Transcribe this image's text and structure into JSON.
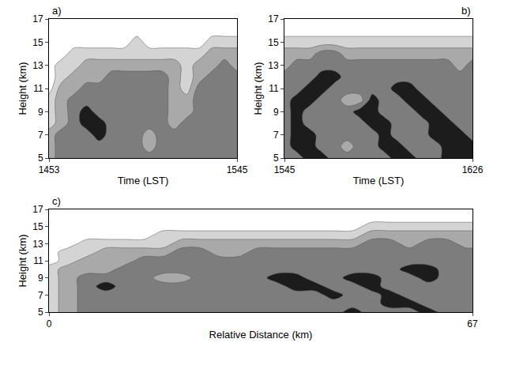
{
  "chart_data": [
    {
      "type": "contour",
      "label": "a)",
      "xlabel": "Time (LST)",
      "ylabel": "Height (km)",
      "categories": [
        "1453",
        null,
        null,
        null,
        null,
        null,
        null,
        null,
        null,
        null,
        null,
        null,
        null,
        null,
        null,
        "1545"
      ],
      "y": [
        5,
        6,
        7,
        8,
        9,
        10,
        11,
        12,
        13,
        14,
        15,
        16,
        17
      ],
      "ylim": [
        5,
        17
      ],
      "yticks": [
        5,
        7,
        9,
        11,
        13,
        15,
        17
      ],
      "colors": [
        "#ffffff",
        "#d4d4d4",
        "#a9a9a9",
        "#7d7d7d",
        "#1c1c1c"
      ],
      "z": [
        [
          2,
          3,
          3,
          3,
          3,
          3,
          3,
          3,
          3,
          3,
          3,
          3,
          3,
          3,
          3,
          3
        ],
        [
          2,
          3,
          3,
          3,
          3,
          3,
          3,
          3,
          2,
          3,
          3,
          3,
          3,
          3,
          3,
          3
        ],
        [
          2,
          3,
          3,
          3,
          4,
          3,
          3,
          3,
          2,
          3,
          3,
          3,
          3,
          3,
          3,
          3
        ],
        [
          1,
          2,
          3,
          4,
          4,
          3,
          3,
          3,
          3,
          3,
          2,
          3,
          3,
          3,
          3,
          3
        ],
        [
          1,
          2,
          3,
          4,
          3,
          3,
          3,
          3,
          3,
          3,
          2,
          2,
          3,
          3,
          3,
          3
        ],
        [
          1,
          2,
          3,
          3,
          3,
          3,
          3,
          3,
          3,
          3,
          2,
          2,
          3,
          3,
          3,
          3
        ],
        [
          0,
          2,
          2,
          3,
          3,
          3,
          3,
          3,
          3,
          3,
          2,
          1,
          3,
          3,
          3,
          3
        ],
        [
          0,
          1,
          2,
          2,
          2,
          3,
          3,
          3,
          3,
          3,
          2,
          1,
          2,
          3,
          3,
          3
        ],
        [
          0,
          1,
          1,
          2,
          2,
          2,
          2,
          2,
          2,
          2,
          2,
          1,
          2,
          2,
          3,
          2
        ],
        [
          0,
          0,
          1,
          1,
          1,
          1,
          1,
          1,
          1,
          1,
          1,
          1,
          1,
          2,
          2,
          2
        ],
        [
          0,
          0,
          0,
          0,
          0,
          0,
          0,
          1,
          0,
          0,
          0,
          0,
          0,
          1,
          1,
          1
        ],
        [
          0,
          0,
          0,
          0,
          0,
          0,
          0,
          0,
          0,
          0,
          0,
          0,
          0,
          0,
          0,
          0
        ],
        [
          0,
          0,
          0,
          0,
          0,
          0,
          0,
          0,
          0,
          0,
          0,
          0,
          0,
          0,
          0,
          0
        ]
      ]
    },
    {
      "type": "contour",
      "label": "b)",
      "xlabel": "Time (LST)",
      "ylabel": "Height (km)",
      "categories": [
        "1545",
        null,
        null,
        null,
        null,
        null,
        null,
        null,
        null,
        null,
        null,
        null,
        null,
        null,
        null,
        "1626"
      ],
      "y": [
        5,
        6,
        7,
        8,
        9,
        10,
        11,
        12,
        13,
        14,
        15,
        16,
        17
      ],
      "ylim": [
        5,
        17
      ],
      "yticks": [
        5,
        7,
        9,
        11,
        13,
        15,
        17
      ],
      "colors": [
        "#ffffff",
        "#d4d4d4",
        "#a9a9a9",
        "#7d7d7d",
        "#1c1c1c"
      ],
      "z": [
        [
          3,
          3,
          4,
          4,
          3,
          3,
          3,
          3,
          3,
          4,
          4,
          3,
          3,
          4,
          4,
          4
        ],
        [
          3,
          4,
          4,
          3,
          3,
          2,
          3,
          3,
          4,
          4,
          3,
          3,
          3,
          4,
          4,
          4
        ],
        [
          3,
          4,
          4,
          3,
          3,
          3,
          3,
          3,
          4,
          3,
          3,
          3,
          4,
          4,
          4,
          3
        ],
        [
          3,
          4,
          3,
          3,
          3,
          3,
          3,
          4,
          4,
          3,
          3,
          3,
          4,
          4,
          3,
          3
        ],
        [
          3,
          4,
          3,
          3,
          3,
          3,
          4,
          4,
          3,
          3,
          3,
          4,
          4,
          3,
          3,
          3
        ],
        [
          3,
          4,
          4,
          3,
          3,
          2,
          2,
          4,
          3,
          3,
          4,
          4,
          3,
          3,
          3,
          3
        ],
        [
          3,
          3,
          4,
          4,
          3,
          3,
          3,
          3,
          3,
          4,
          4,
          3,
          3,
          3,
          3,
          3
        ],
        [
          3,
          3,
          3,
          4,
          4,
          3,
          3,
          3,
          3,
          3,
          3,
          3,
          3,
          3,
          3,
          3
        ],
        [
          2,
          3,
          3,
          3,
          3,
          3,
          3,
          3,
          3,
          3,
          3,
          3,
          3,
          3,
          2,
          3
        ],
        [
          2,
          2,
          2,
          3,
          3,
          2,
          2,
          2,
          2,
          2,
          2,
          2,
          2,
          2,
          2,
          2
        ],
        [
          1,
          1,
          1,
          1,
          1,
          1,
          1,
          1,
          1,
          1,
          1,
          1,
          1,
          1,
          1,
          1
        ],
        [
          0,
          0,
          0,
          0,
          0,
          0,
          0,
          0,
          0,
          0,
          0,
          0,
          0,
          0,
          0,
          0
        ],
        [
          0,
          0,
          0,
          0,
          0,
          0,
          0,
          0,
          0,
          0,
          0,
          0,
          0,
          0,
          0,
          0
        ]
      ]
    },
    {
      "type": "contour",
      "label": "c)",
      "xlabel": "Relative Distance (km)",
      "ylabel": "Height (km)",
      "x": [
        0,
        3,
        6,
        9,
        12,
        15,
        18,
        21,
        24,
        27,
        30,
        33,
        36,
        39,
        42,
        45,
        48,
        51,
        54,
        57,
        60,
        63,
        66,
        67
      ],
      "xlim": [
        0,
        67
      ],
      "xticks": [
        0,
        67
      ],
      "y": [
        5,
        6,
        7,
        8,
        9,
        10,
        11,
        12,
        13,
        14,
        15,
        16,
        17
      ],
      "ylim": [
        5,
        17
      ],
      "yticks": [
        5,
        7,
        9,
        11,
        13,
        15,
        17
      ],
      "colors": [
        "#ffffff",
        "#d4d4d4",
        "#a9a9a9",
        "#7d7d7d",
        "#1c1c1c"
      ],
      "z": [
        [
          1,
          2,
          3,
          3,
          3,
          3,
          3,
          3,
          3,
          3,
          3,
          3,
          3,
          3,
          3,
          3,
          4,
          3,
          3,
          3,
          4,
          3,
          3,
          3
        ],
        [
          1,
          2,
          3,
          3,
          3,
          3,
          3,
          3,
          3,
          3,
          3,
          3,
          3,
          3,
          3,
          3,
          3,
          3,
          4,
          4,
          3,
          3,
          3,
          3
        ],
        [
          1,
          2,
          3,
          3,
          3,
          3,
          3,
          3,
          3,
          3,
          3,
          3,
          3,
          3,
          3,
          4,
          3,
          3,
          4,
          3,
          3,
          3,
          3,
          3
        ],
        [
          1,
          2,
          3,
          4,
          3,
          3,
          3,
          3,
          3,
          3,
          3,
          3,
          3,
          4,
          4,
          3,
          3,
          4,
          3,
          3,
          3,
          3,
          3,
          3
        ],
        [
          1,
          2,
          3,
          3,
          3,
          3,
          2,
          2,
          3,
          3,
          3,
          3,
          4,
          4,
          3,
          3,
          4,
          4,
          3,
          3,
          4,
          3,
          3,
          3
        ],
        [
          1,
          2,
          2,
          2,
          3,
          3,
          3,
          3,
          3,
          3,
          3,
          3,
          3,
          3,
          3,
          3,
          3,
          3,
          3,
          4,
          4,
          3,
          3,
          3
        ],
        [
          0,
          1,
          2,
          2,
          2,
          3,
          3,
          3,
          3,
          3,
          3,
          3,
          3,
          3,
          3,
          3,
          3,
          3,
          3,
          3,
          3,
          3,
          3,
          3
        ],
        [
          0,
          1,
          1,
          2,
          2,
          2,
          2,
          3,
          3,
          2,
          2,
          3,
          3,
          3,
          3,
          3,
          3,
          3,
          3,
          3,
          3,
          3,
          3,
          3
        ],
        [
          0,
          0,
          1,
          1,
          1,
          1,
          1,
          2,
          2,
          2,
          2,
          2,
          2,
          2,
          2,
          2,
          2,
          3,
          3,
          2,
          3,
          3,
          2,
          2
        ],
        [
          0,
          0,
          0,
          0,
          0,
          0,
          1,
          1,
          1,
          1,
          1,
          1,
          1,
          1,
          1,
          1,
          1,
          2,
          2,
          2,
          2,
          2,
          2,
          2
        ],
        [
          0,
          0,
          0,
          0,
          0,
          0,
          0,
          0,
          0,
          0,
          0,
          0,
          0,
          0,
          0,
          0,
          0,
          1,
          1,
          1,
          1,
          1,
          1,
          1
        ],
        [
          0,
          0,
          0,
          0,
          0,
          0,
          0,
          0,
          0,
          0,
          0,
          0,
          0,
          0,
          0,
          0,
          0,
          0,
          0,
          0,
          0,
          0,
          0,
          0
        ],
        [
          0,
          0,
          0,
          0,
          0,
          0,
          0,
          0,
          0,
          0,
          0,
          0,
          0,
          0,
          0,
          0,
          0,
          0,
          0,
          0,
          0,
          0,
          0,
          0
        ]
      ]
    }
  ]
}
